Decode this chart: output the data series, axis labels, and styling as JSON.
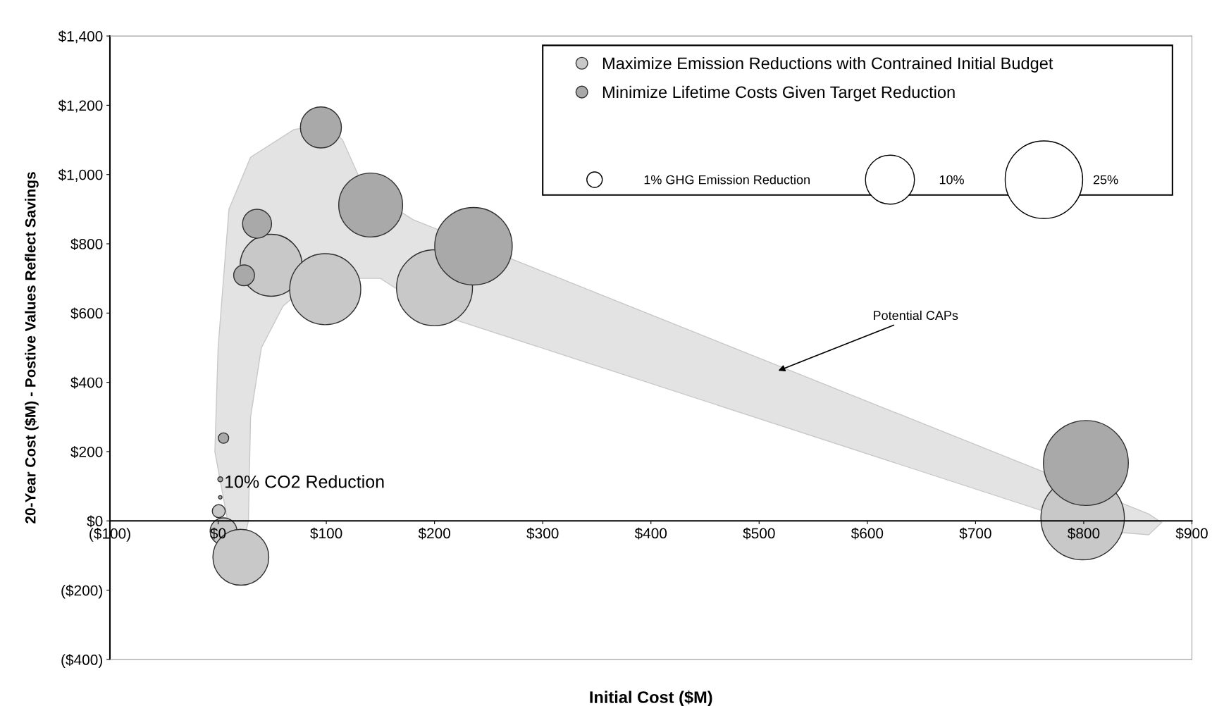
{
  "chart_data": {
    "type": "bubble",
    "xlabel": "Initial Cost ($M)",
    "ylabel": "20-Year Cost ($M) - Postive Values Reflect Savings",
    "series": [
      {
        "name": "Maximize Emission Reductions with Contrained Initial Budget",
        "color": "#c8c8c8",
        "x": [
          49,
          99,
          200,
          0.6,
          5,
          21,
          799
        ],
        "values": [
          738,
          669,
          673,
          28,
          -30,
          -105,
          8
        ],
        "sizes": [
          16,
          21,
          24,
          0.7,
          3,
          13,
          29
        ]
      },
      {
        "name": "Minimize Lifetime Costs Given Target Reduction",
        "color": "#a9a9a9",
        "x": [
          95,
          141,
          236,
          36,
          24,
          5,
          2,
          2,
          802
        ],
        "values": [
          1136,
          912,
          793,
          858,
          709,
          239,
          120,
          68,
          167
        ],
        "sizes": [
          7,
          17,
          25,
          3.5,
          1.8,
          0.45,
          0.1,
          0.05,
          30
        ]
      }
    ],
    "size_legend": [
      {
        "value": 1,
        "label": "1% GHG Emission Reduction"
      },
      {
        "value": 10,
        "label": "10%"
      },
      {
        "value": 25,
        "label": "25%"
      }
    ],
    "annotations": [
      "Potential CAPs",
      {
        "text": "10% CO2 Reduction",
        "x": 2,
        "y": 68
      }
    ],
    "xlim": [
      -100,
      900
    ],
    "xticks": [
      {
        "value": -100,
        "label": "($100)"
      },
      {
        "value": 0,
        "label": "$0"
      },
      {
        "value": 100,
        "label": "$100"
      },
      {
        "value": 200,
        "label": "$200"
      },
      {
        "value": 300,
        "label": "$300"
      },
      {
        "value": 400,
        "label": "$400"
      },
      {
        "value": 500,
        "label": "$500"
      },
      {
        "value": 600,
        "label": "$600"
      },
      {
        "value": 700,
        "label": "$700"
      },
      {
        "value": 800,
        "label": "$800"
      },
      {
        "value": 900,
        "label": "$900"
      }
    ],
    "ylim": [
      -400,
      1400
    ],
    "yticks": [
      {
        "value": -400,
        "label": "($400)"
      },
      {
        "value": -200,
        "label": "($200)"
      },
      {
        "value": 0,
        "label": "$0"
      },
      {
        "value": 200,
        "label": "$200"
      },
      {
        "value": 400,
        "label": "$400"
      },
      {
        "value": 600,
        "label": "$600"
      },
      {
        "value": 800,
        "label": "$800"
      },
      {
        "value": 1000,
        "label": "$1,000"
      },
      {
        "value": 1200,
        "label": "$1,200"
      },
      {
        "value": 1400,
        "label": "$1,400"
      }
    ],
    "grid": false,
    "legend": "top right"
  }
}
